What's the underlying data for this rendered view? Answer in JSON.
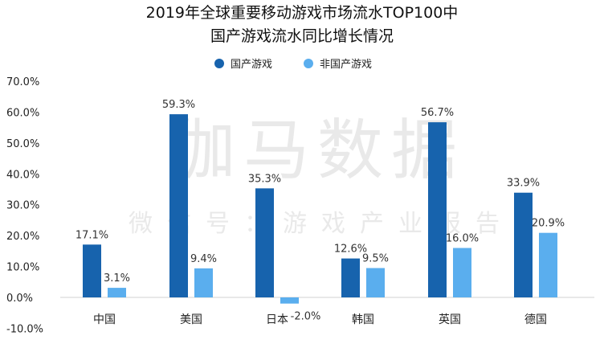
{
  "chart_data": {
    "type": "bar",
    "title": "2019年全球重要移动游戏市场流水TOP100中",
    "subtitle": "国产游戏流水同比增长情况",
    "categories": [
      "中国",
      "美国",
      "日本",
      "韩国",
      "英国",
      "德国"
    ],
    "series": [
      {
        "name": "国产游戏",
        "color": "#1763ad",
        "values": [
          17.1,
          59.3,
          35.3,
          12.6,
          56.7,
          33.9
        ],
        "labels": [
          "17.1%",
          "59.3%",
          "35.3%",
          "12.6%",
          "56.7%",
          "33.9%"
        ]
      },
      {
        "name": "非国产游戏",
        "color": "#5aaeee",
        "values": [
          3.1,
          9.4,
          -2.0,
          9.5,
          16.0,
          20.9
        ],
        "labels": [
          "3.1%",
          "9.4%",
          "-2.0%",
          "9.5%",
          "16.0%",
          "20.9%"
        ]
      }
    ],
    "ylim": [
      -10,
      70
    ],
    "yticks": [
      "70.0%",
      "60.0%",
      "50.0%",
      "40.0%",
      "30.0%",
      "20.0%",
      "10.0%",
      "0.0%",
      "-10.0%"
    ],
    "ytick_values": [
      70,
      60,
      50,
      40,
      30,
      20,
      10,
      0,
      -10
    ],
    "xlabel": "",
    "ylabel": "",
    "grid": false,
    "legend": "top-center"
  },
  "watermark": {
    "main": "伽马数据",
    "sub": "微信号：游戏产业报告"
  }
}
